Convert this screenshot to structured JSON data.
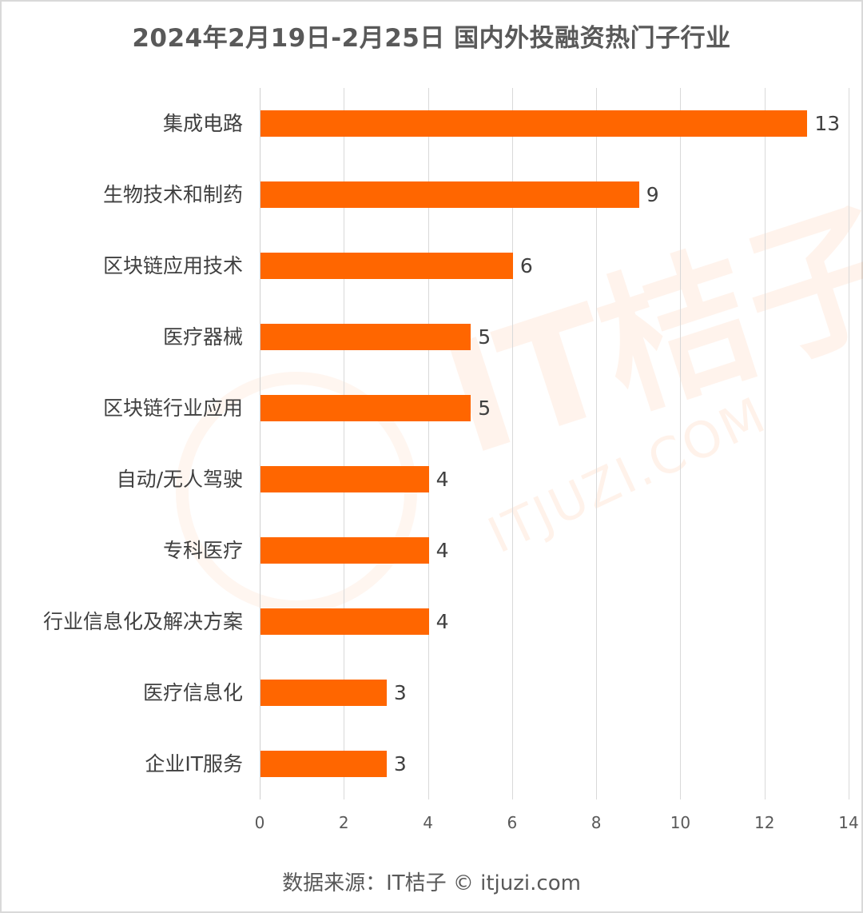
{
  "title": "2024年2月19日-2月25日 国内外投融资热门子行业",
  "source": "数据来源：IT桔子 © itjuzi.com",
  "watermark": {
    "text": "IT桔子",
    "url": "ITJUZI.COM"
  },
  "colors": {
    "bar": "#ff6600",
    "text": "#404040",
    "grid": "#d9d9d9"
  },
  "chart_data": {
    "type": "bar",
    "orientation": "horizontal",
    "title": "2024年2月19日-2月25日 国内外投融资热门子行业",
    "xlabel": "",
    "ylabel": "",
    "categories": [
      "集成电路",
      "生物技术和制药",
      "区块链应用技术",
      "医疗器械",
      "区块链行业应用",
      "自动/无人驾驶",
      "专科医疗",
      "行业信息化及解决方案",
      "医疗信息化",
      "企业IT服务"
    ],
    "values": [
      13,
      9,
      6,
      5,
      5,
      4,
      4,
      4,
      3,
      3
    ],
    "xlim": [
      0,
      14
    ],
    "xticks": [
      "0",
      "2",
      "4",
      "6",
      "8",
      "10",
      "12",
      "14"
    ],
    "grid": "vertical",
    "data_labels": true,
    "legend": "none",
    "source": "数据来源：IT桔子 © itjuzi.com"
  }
}
